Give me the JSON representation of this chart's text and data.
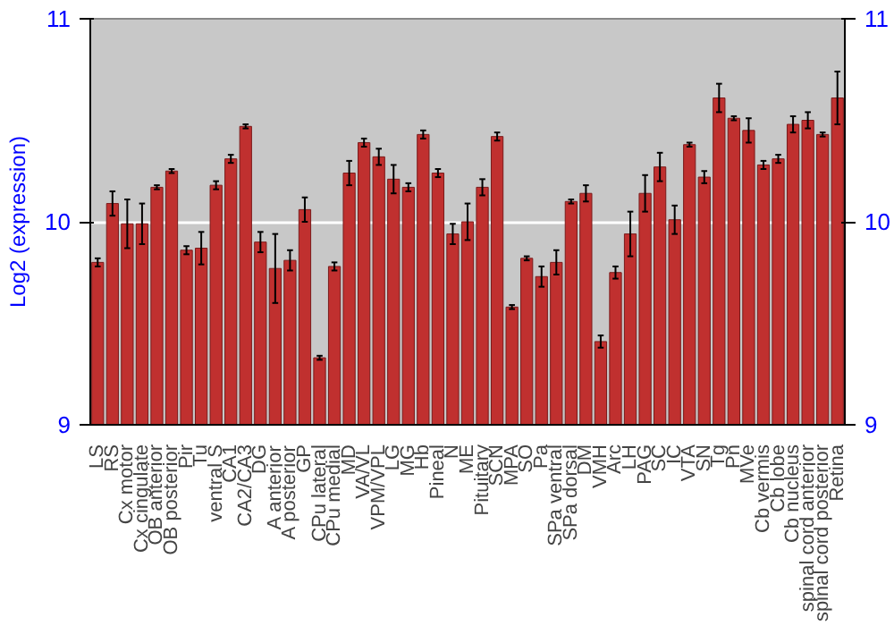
{
  "chart_data": {
    "type": "bar",
    "ylabel": "Log2 (expression)",
    "categories": [
      "LS",
      "RS",
      "Cx motor",
      "Cx cingulate",
      "OB anterior",
      "OB posterior",
      "Pir",
      "Tu",
      "ventral S",
      "CA1",
      "CA2/CA3",
      "DG",
      "A anterior",
      "A posterior",
      "GP",
      "CPu lateral",
      "CPu medial",
      "MD",
      "VA/VL",
      "VPM/VPL",
      "LG",
      "MG",
      "Hb",
      "Pineal",
      "N",
      "ME",
      "Pituitary",
      "SCN",
      "MPA",
      "SO",
      "Pa",
      "SPa ventral",
      "SPa dorsal",
      "DM",
      "VMH",
      "Arc",
      "LH",
      "PAG",
      "SC",
      "IC",
      "VTA",
      "SN",
      "Tg",
      "Pn",
      "MVe",
      "Cb vermis",
      "Cb lobe",
      "Cb nucleus",
      "spinal cord anterior",
      "spinal cord posterior",
      "Retina"
    ],
    "values": [
      9.8,
      10.09,
      9.99,
      9.99,
      10.17,
      10.25,
      9.86,
      9.87,
      10.18,
      10.31,
      10.47,
      9.9,
      9.77,
      9.81,
      10.06,
      9.33,
      9.78,
      10.24,
      10.39,
      10.32,
      10.21,
      10.17,
      10.43,
      10.24,
      9.94,
      10.0,
      10.17,
      10.42,
      9.58,
      9.82,
      9.73,
      9.8,
      10.1,
      10.14,
      9.41,
      9.75,
      9.94,
      10.14,
      10.27,
      10.01,
      10.38,
      10.22,
      10.61,
      10.51,
      10.45,
      10.28,
      10.31,
      10.48,
      10.5,
      10.43,
      10.61
    ],
    "errors": [
      0.02,
      0.06,
      0.12,
      0.1,
      0.01,
      0.01,
      0.02,
      0.08,
      0.02,
      0.02,
      0.01,
      0.05,
      0.17,
      0.05,
      0.06,
      0.01,
      0.02,
      0.06,
      0.02,
      0.04,
      0.07,
      0.02,
      0.02,
      0.02,
      0.05,
      0.09,
      0.04,
      0.02,
      0.01,
      0.01,
      0.05,
      0.06,
      0.01,
      0.04,
      0.03,
      0.03,
      0.11,
      0.09,
      0.07,
      0.07,
      0.01,
      0.03,
      0.07,
      0.01,
      0.06,
      0.02,
      0.02,
      0.04,
      0.04,
      0.01,
      0.13
    ],
    "color": "#c0302f",
    "ylim": [
      9,
      11
    ],
    "yticks": [
      9,
      10,
      11
    ],
    "y2lim": [
      9,
      11
    ],
    "y2ticks": [
      9,
      10,
      11
    ],
    "grid": "y"
  }
}
